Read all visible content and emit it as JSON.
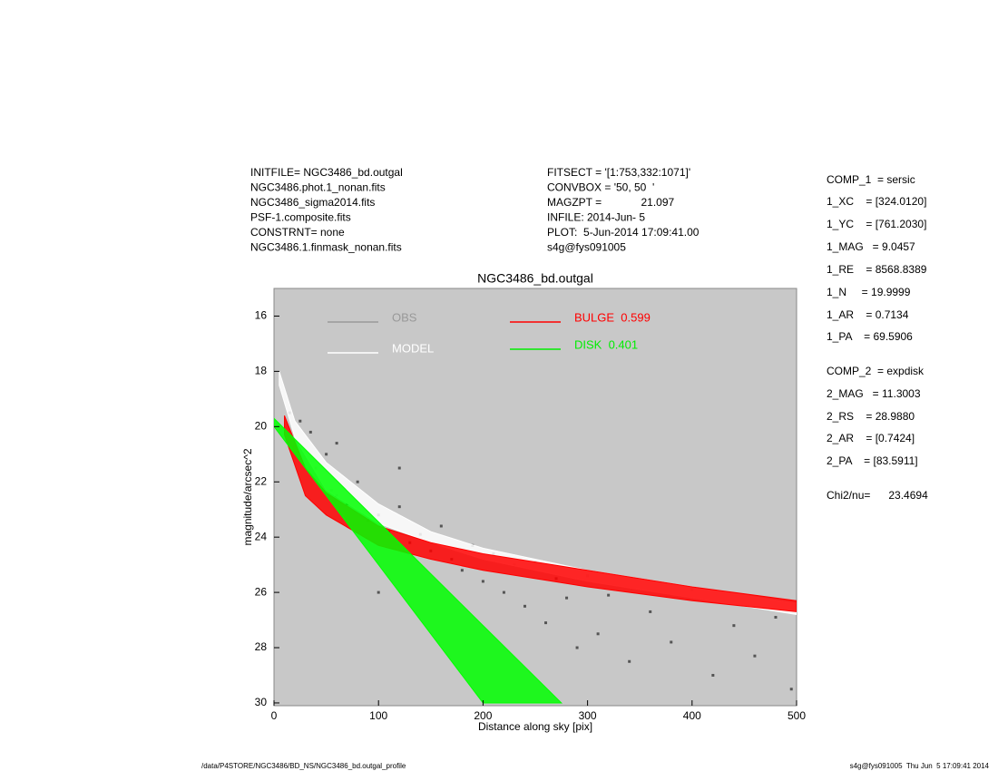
{
  "header_left": [
    "INITFILE= NGC3486_bd.outgal",
    "NGC3486.phot.1_nonan.fits",
    "NGC3486_sigma2014.fits",
    "PSF-1.composite.fits",
    "CONSTRNT= none",
    "NGC3486.1.finmask_nonan.fits"
  ],
  "header_middle": [
    "FITSECT = '[1:753,332:1071]'",
    "CONVBOX = '50, 50  '",
    "MAGZPT =             21.097",
    "INFILE: 2014-Jun- 5",
    "PLOT:  5-Jun-2014 17:09:41.00",
    "s4g@fys091005"
  ],
  "fit_params": [
    "COMP_1  = sersic",
    "1_XC    = [324.0120]",
    "1_YC    = [761.2030]",
    "1_MAG   = 9.0457",
    "1_RE    = 8568.8389",
    "1_N     = 19.9999",
    "1_AR    = 0.7134",
    "1_PA    = 69.5906",
    "COMP_2  = expdisk",
    "2_MAG   = 11.3003",
    "2_RS    = 28.9880",
    "2_AR    = [0.7424]",
    "2_PA    = [83.5911]",
    "Chi2/nu=      23.4694"
  ],
  "footer_left": "/data/P4STORE/NGC3486/BD_NS/NGC3486_bd.outgal_profile",
  "footer_right": "s4g@fys091005  Thu Jun  5 17:09:41 2014",
  "chart_data": {
    "type": "scatter",
    "title": "NGC3486_bd.outgal",
    "x_label": "Distance along sky [pix]",
    "y_label": "magnitude/arcsec^2",
    "xlim": [
      0,
      500
    ],
    "xticks": [
      0,
      100,
      200,
      300,
      400,
      500
    ],
    "ylim": [
      15,
      30.1
    ],
    "yticks": [
      16,
      18,
      20,
      22,
      24,
      26,
      28,
      30
    ],
    "y_inverted": true,
    "background": "#c8c8c8",
    "series": [
      {
        "name": "OBS",
        "color": "#555555",
        "legend_color": "#999999",
        "x": [
          15,
          25,
          35,
          40,
          50,
          55,
          60,
          70,
          80,
          90,
          100,
          110,
          120,
          130,
          140,
          150,
          160,
          170,
          180,
          190,
          200,
          210,
          220,
          230,
          240,
          250,
          260,
          270,
          280,
          290,
          300,
          310,
          320,
          340,
          360,
          380,
          400,
          420,
          440,
          460,
          480,
          495,
          100,
          60,
          120
        ],
        "values": [
          19.5,
          19.8,
          20.2,
          21.5,
          21.0,
          22.3,
          22.5,
          22.8,
          22.0,
          23.4,
          23.2,
          23.8,
          22.9,
          24.2,
          23.9,
          24.5,
          23.6,
          24.8,
          25.2,
          24.3,
          25.6,
          24.6,
          26.0,
          25.0,
          26.5,
          24.9,
          27.1,
          25.5,
          26.2,
          28.0,
          25.4,
          27.5,
          26.1,
          28.5,
          26.7,
          27.8,
          25.9,
          29.0,
          27.2,
          28.3,
          26.9,
          29.5,
          26.0,
          20.6,
          21.5
        ]
      },
      {
        "name": "MODEL",
        "color": "#ffffff",
        "legend_color": "#ffffff",
        "x": [
          5,
          20,
          50,
          100,
          150,
          200,
          300,
          400,
          500
        ],
        "low": [
          18.0,
          19.8,
          21.3,
          22.8,
          23.8,
          24.4,
          25.2,
          25.8,
          26.4
        ],
        "high": [
          18.5,
          20.4,
          22.3,
          23.5,
          24.2,
          24.8,
          25.6,
          26.2,
          26.8
        ]
      },
      {
        "name": "BULGE  0.599",
        "color": "#ff0000",
        "legend_color": "#ff0000",
        "x": [
          10,
          30,
          50,
          100,
          150,
          200,
          300,
          400,
          500
        ],
        "low": [
          19.6,
          21.5,
          22.4,
          23.6,
          24.2,
          24.6,
          25.2,
          25.8,
          26.3
        ],
        "high": [
          20.3,
          22.5,
          23.2,
          24.3,
          24.8,
          25.2,
          25.8,
          26.3,
          26.7
        ]
      },
      {
        "name": "DISK  0.401",
        "color": "#00ff00",
        "legend_color": "#00ee00",
        "x": [
          0,
          100,
          200,
          275
        ],
        "low": [
          19.7,
          23.45,
          27.2,
          30.0
        ],
        "high": [
          20.0,
          25.0,
          30.0,
          30.0
        ]
      }
    ]
  }
}
